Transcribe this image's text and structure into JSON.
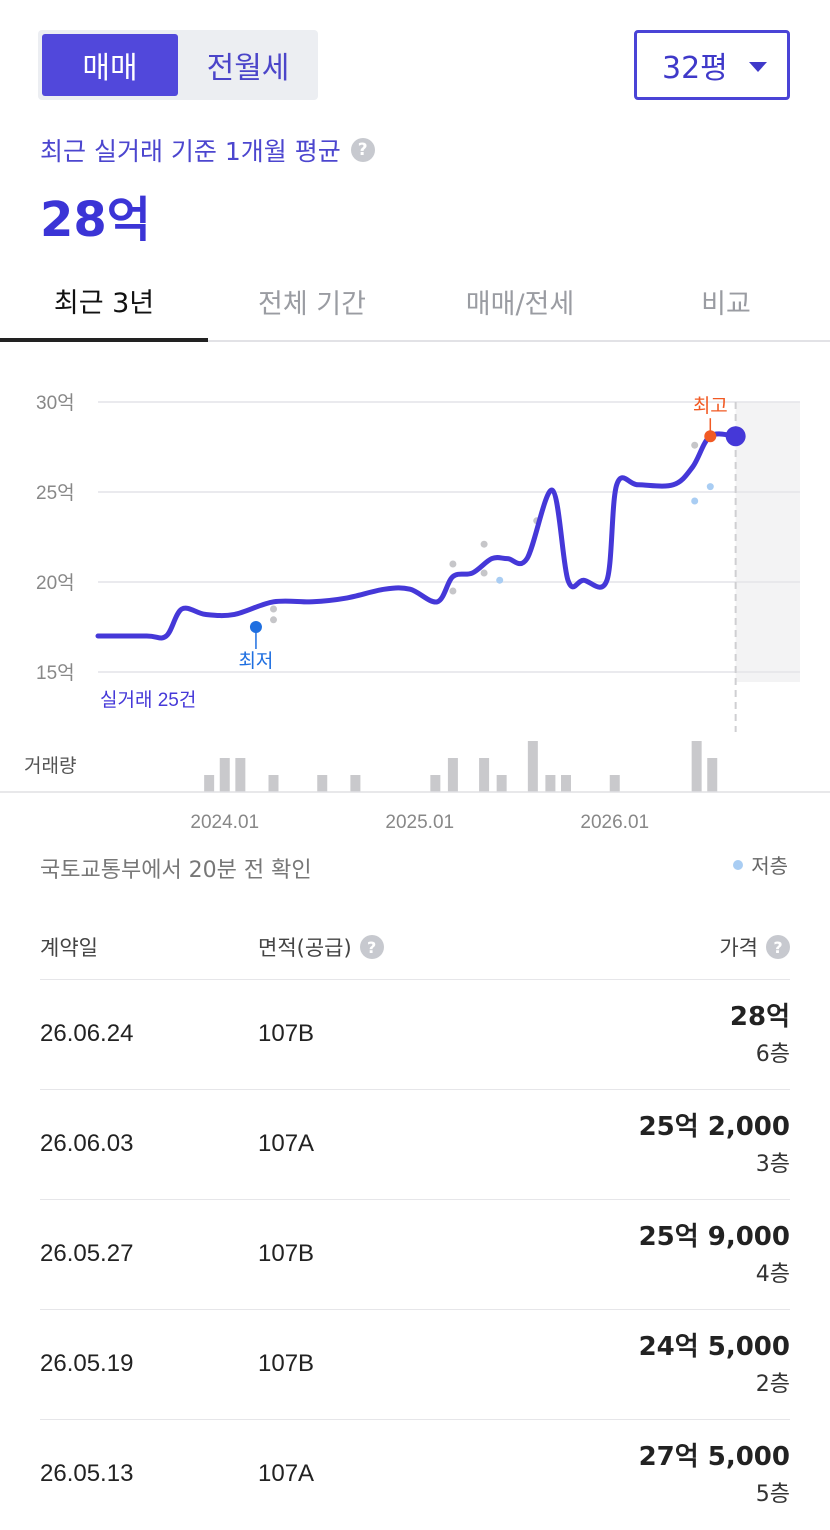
{
  "deal_types": {
    "sale": "매매",
    "rent": "전월세",
    "selected": "매매"
  },
  "size_select": {
    "value": "32평"
  },
  "summary": {
    "label": "최근 실거래 기준 1개월 평균",
    "value": "28억"
  },
  "tabs": [
    {
      "label": "최근 3년",
      "active": true
    },
    {
      "label": "전체 기간",
      "active": false
    },
    {
      "label": "매매/전세",
      "active": false
    },
    {
      "label": "비교",
      "active": false
    }
  ],
  "chart_data": {
    "type": "line",
    "y_tick_labels": [
      "30억",
      "25억",
      "20억",
      "15억"
    ],
    "y_ticks": [
      30,
      25,
      20,
      15
    ],
    "ylim": [
      15,
      30
    ],
    "x_tick_labels": [
      "2024.01",
      "2025.01",
      "2026.01"
    ],
    "x_ticks": [
      2024.0,
      2025.0,
      2026.0
    ],
    "xlim": [
      2023.35,
      2026.95
    ],
    "forecast_start": 2026.62,
    "series": [
      {
        "points": [
          [
            2023.35,
            17.0
          ],
          [
            2023.6,
            17.0
          ],
          [
            2023.7,
            17.0
          ],
          [
            2023.78,
            18.5
          ],
          [
            2023.9,
            18.2
          ],
          [
            2024.05,
            18.2
          ],
          [
            2024.25,
            18.9
          ],
          [
            2024.45,
            18.9
          ],
          [
            2024.62,
            19.1
          ],
          [
            2024.82,
            19.6
          ],
          [
            2024.95,
            19.6
          ],
          [
            2025.09,
            18.9
          ],
          [
            2025.17,
            20.3
          ],
          [
            2025.27,
            20.5
          ],
          [
            2025.37,
            21.3
          ],
          [
            2025.45,
            21.3
          ],
          [
            2025.55,
            21.3
          ],
          [
            2025.68,
            25.1
          ],
          [
            2025.76,
            20.1
          ],
          [
            2025.84,
            20.1
          ],
          [
            2025.96,
            20.1
          ],
          [
            2026.01,
            25.4
          ],
          [
            2026.12,
            25.4
          ],
          [
            2026.3,
            25.4
          ],
          [
            2026.4,
            26.4
          ],
          [
            2026.49,
            28.1
          ],
          [
            2026.62,
            28.1
          ]
        ]
      }
    ],
    "dots_gray": [
      [
        2024.25,
        18.5
      ],
      [
        2024.25,
        17.9
      ],
      [
        2025.17,
        21.0
      ],
      [
        2025.17,
        19.5
      ],
      [
        2025.33,
        22.1
      ],
      [
        2025.33,
        20.5
      ],
      [
        2025.6,
        23.4
      ],
      [
        2026.41,
        27.6
      ]
    ],
    "dots_lowfloor": [
      [
        2025.41,
        20.1
      ],
      [
        2026.41,
        24.5
      ],
      [
        2026.49,
        25.3
      ]
    ],
    "low_point": {
      "x": 2024.16,
      "y": 17.5,
      "label": "최저"
    },
    "high_point": {
      "x": 2026.49,
      "y": 28.1,
      "label": "최고"
    },
    "latest_point": {
      "x": 2026.62,
      "y": 28.1
    },
    "volume_label": "거래량",
    "volume": [
      [
        2023.92,
        1
      ],
      [
        2024.0,
        2
      ],
      [
        2024.08,
        2
      ],
      [
        2024.25,
        1
      ],
      [
        2024.5,
        1
      ],
      [
        2024.67,
        1
      ],
      [
        2025.08,
        1
      ],
      [
        2025.17,
        2
      ],
      [
        2025.33,
        2
      ],
      [
        2025.42,
        1
      ],
      [
        2025.58,
        3
      ],
      [
        2025.67,
        1
      ],
      [
        2025.75,
        1
      ],
      [
        2026.0,
        1
      ],
      [
        2026.42,
        3
      ],
      [
        2026.5,
        2
      ]
    ],
    "trade_count_label": "실거래 25건",
    "colors": {
      "line": "#4538d8",
      "high": "#f15a24",
      "low": "#1f6fe0",
      "grid": "#e4e4e8",
      "gray_dot": "#c6c6c9",
      "low_floor_dot": "#a9cdf3",
      "bar": "#c9c9cc",
      "forecast_bg": "#f3f3f4"
    }
  },
  "source_text": "국토교통부에서 20분 전 확인",
  "legend": {
    "label": "저층",
    "color": "#a9cdf3"
  },
  "table": {
    "headers": {
      "date": "계약일",
      "area": "면적(공급)",
      "price": "가격"
    },
    "rows": [
      {
        "date": "26.06.24",
        "area": "107B",
        "price": "28억",
        "floor": "6층"
      },
      {
        "date": "26.06.03",
        "area": "107A",
        "price": "25억 2,000",
        "floor": "3층"
      },
      {
        "date": "26.05.27",
        "area": "107B",
        "price": "25억 9,000",
        "floor": "4층"
      },
      {
        "date": "26.05.19",
        "area": "107B",
        "price": "24억 5,000",
        "floor": "2층"
      },
      {
        "date": "26.05.13",
        "area": "107A",
        "price": "27억 5,000",
        "floor": "5층"
      }
    ]
  }
}
